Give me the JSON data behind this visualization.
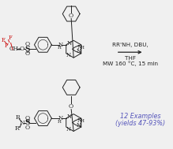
{
  "figsize": [
    2.19,
    1.89
  ],
  "dpi": 100,
  "bg_color": "#f0f0f0",
  "reaction_conditions_line1": "RR'NH, DBU,",
  "reaction_conditions_line2": "THF",
  "reaction_conditions_line3": "MW 160 °C, 15 min",
  "blue_text_line1": "12 Examples",
  "blue_text_line2": "(yields 47-93%)",
  "blue_color": "#5555bb",
  "arrow_color": "#222222",
  "mol_color": "#222222",
  "red_color": "#cc1111",
  "cond_fontsize": 5.2,
  "blue_fontsize": 5.8,
  "mol_fontsize": 5.5,
  "lw": 0.7
}
